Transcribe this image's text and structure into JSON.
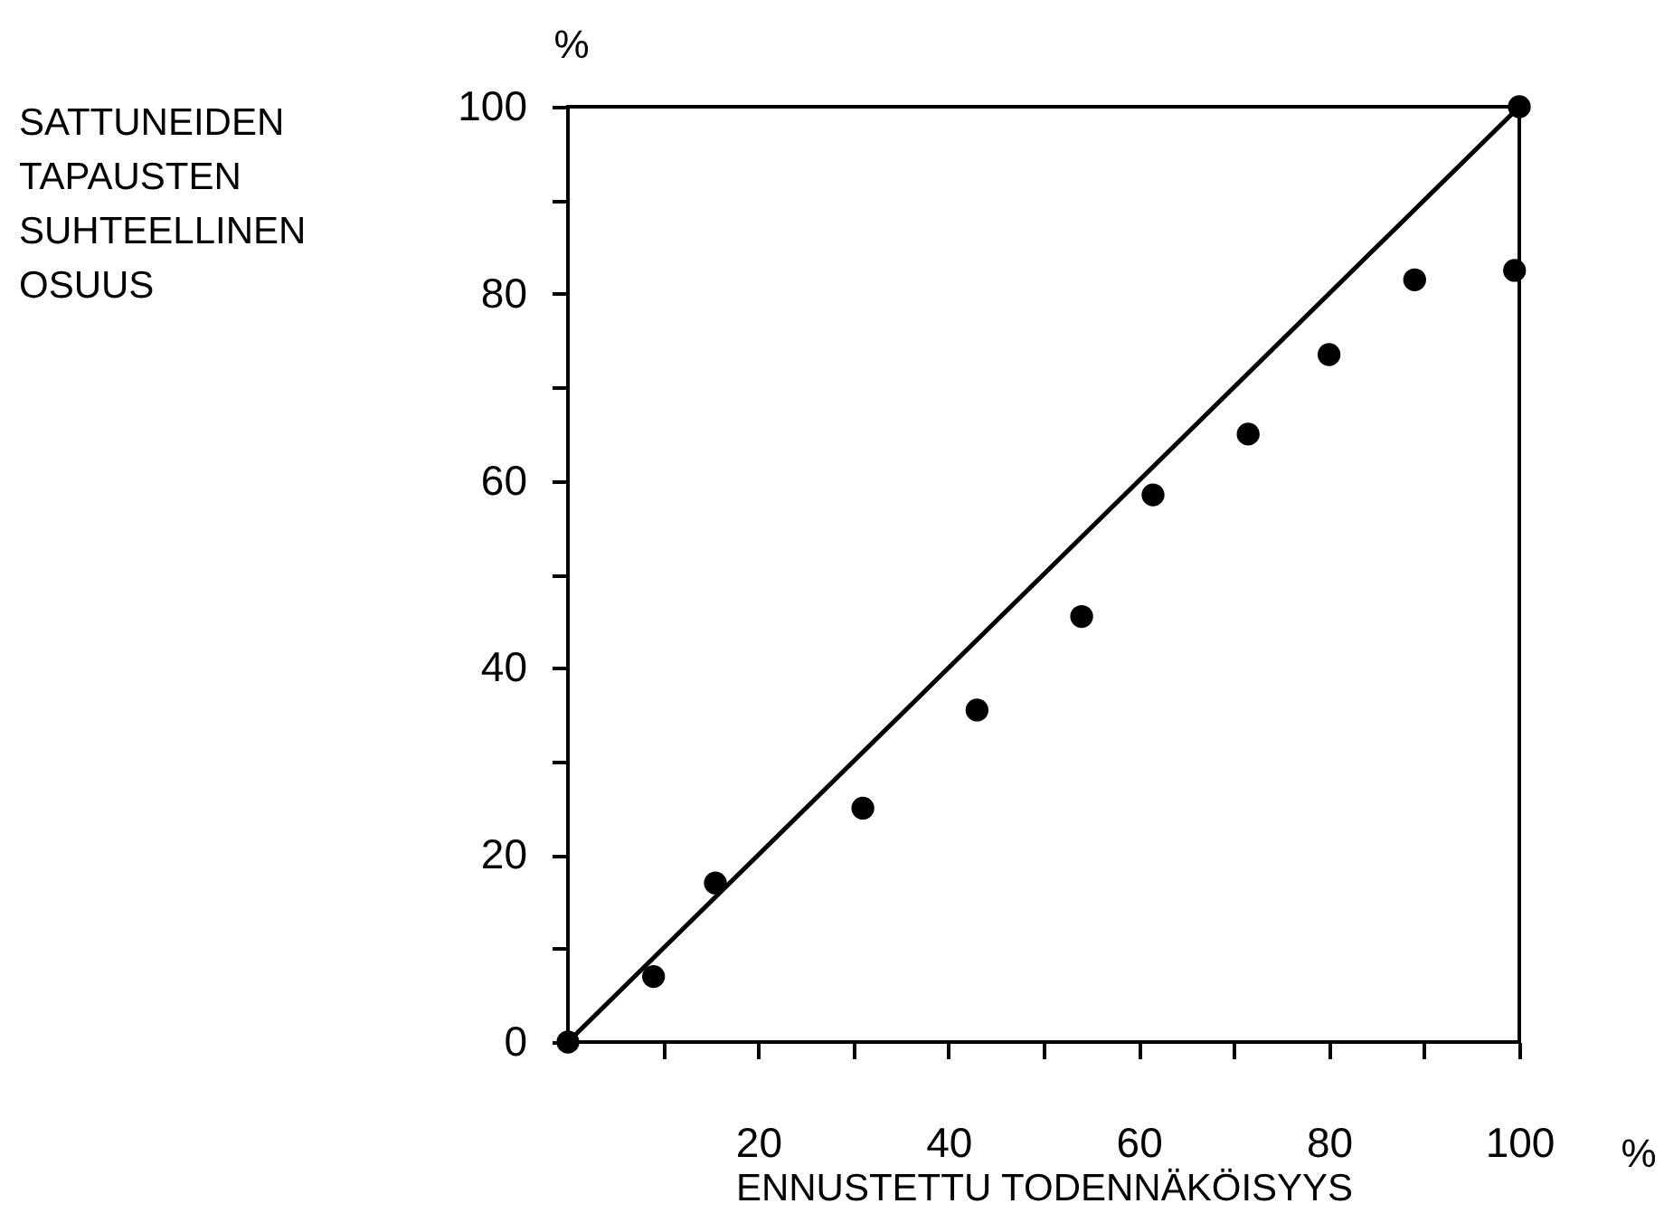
{
  "chart_data": {
    "type": "scatter",
    "xlabel": "ENNUSTETTU TODENNÄKÖISYYS",
    "ylabel": "SATTUNEIDEN TAPAUSTEN SUHTEELLINEN OSUUS",
    "annotations": [
      "%",
      "%"
    ],
    "xlim": [
      0,
      100
    ],
    "ylim": [
      0,
      100
    ],
    "xticks": [
      {
        "value": 10,
        "label": null
      },
      20,
      {
        "value": 30,
        "label": null
      },
      40,
      {
        "value": 50,
        "label": null
      },
      60,
      {
        "value": 70,
        "label": null
      },
      80,
      {
        "value": 90,
        "label": null
      },
      100
    ],
    "yticks": [
      0,
      {
        "value": 10,
        "label": null
      },
      20,
      {
        "value": 30,
        "label": null
      },
      40,
      {
        "value": 50,
        "label": null
      },
      60,
      {
        "value": 70,
        "label": null
      },
      80,
      {
        "value": 90,
        "label": null
      },
      100
    ],
    "grid": false,
    "series": [
      {
        "type": "line",
        "color": "#000000",
        "x": [
          0,
          100
        ],
        "values": [
          0,
          100
        ],
        "line_style": "solid"
      },
      {
        "type": "scatter",
        "color": "#000000",
        "marker": "circle",
        "x": [
          0,
          9,
          15.5,
          31,
          43,
          54,
          61.5,
          71.5,
          80,
          89,
          99.5,
          100
        ],
        "values": [
          0,
          7,
          17,
          25,
          35.5,
          45.5,
          58.5,
          65,
          73.5,
          81.5,
          82.5,
          100
        ]
      }
    ]
  }
}
